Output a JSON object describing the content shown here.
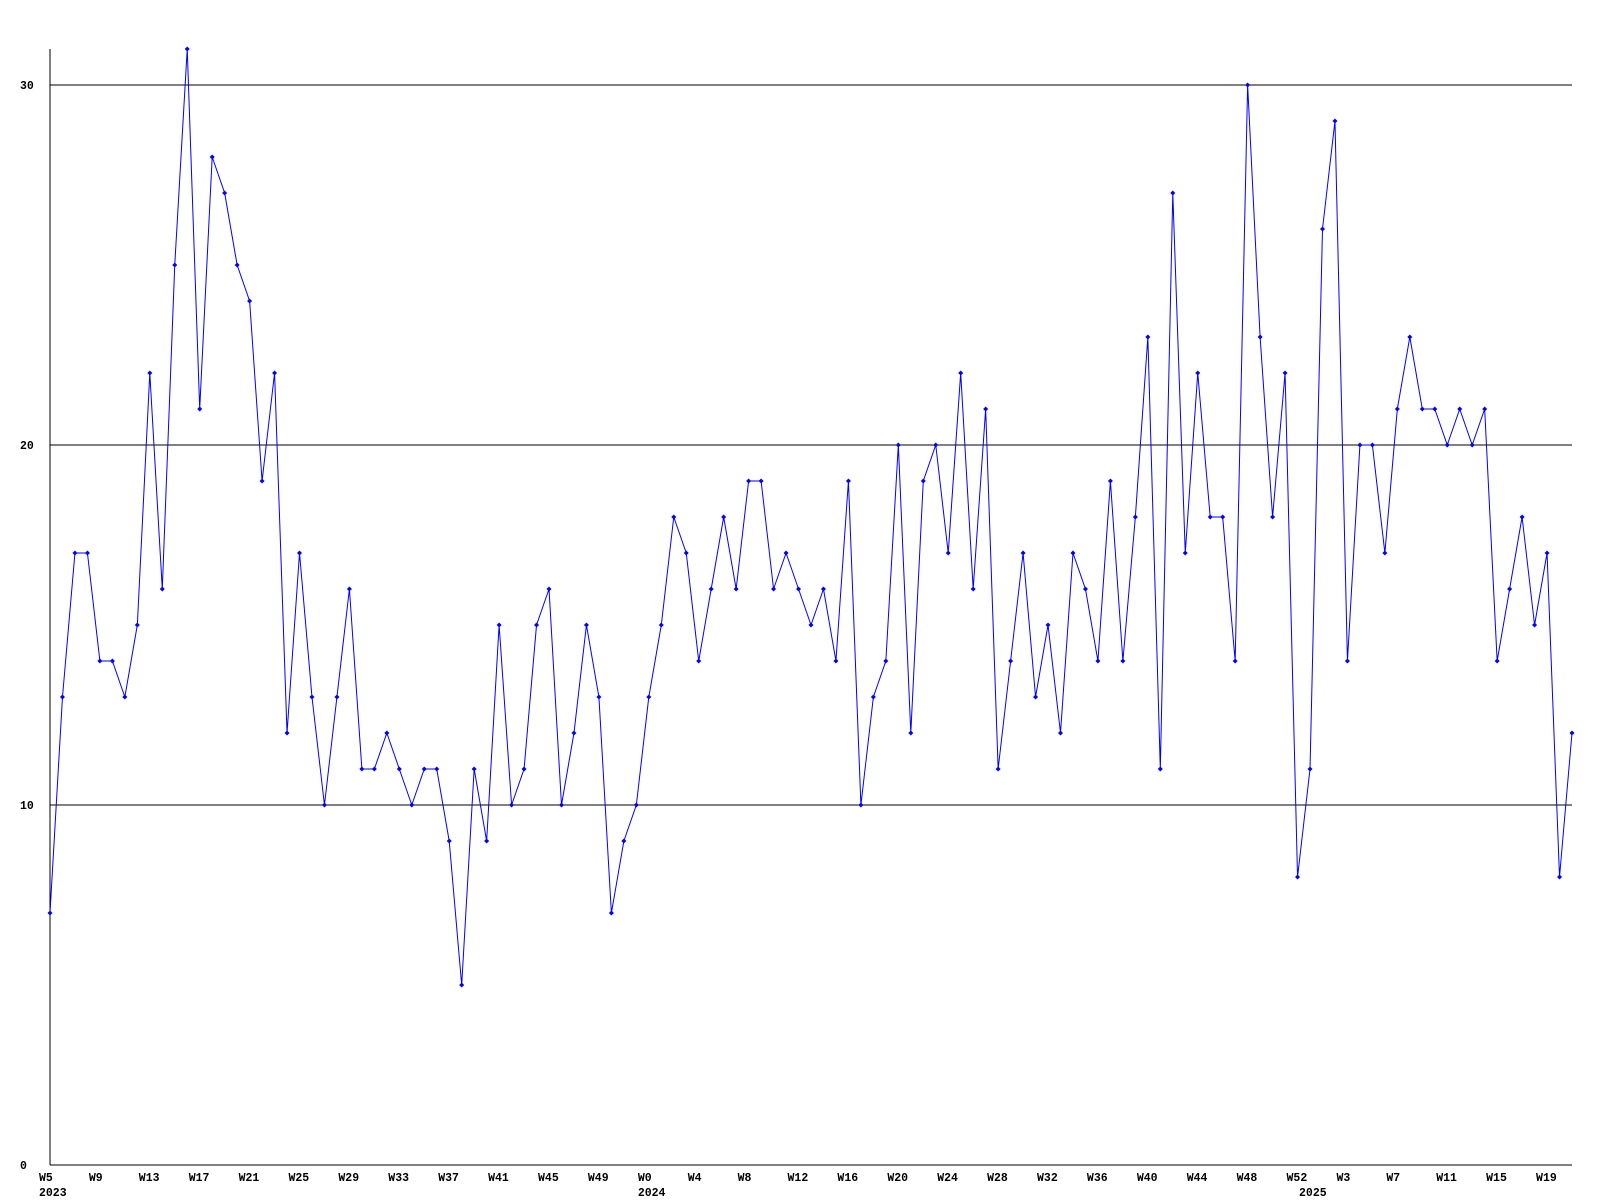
{
  "chart_data": {
    "type": "line",
    "color": "#0000ff",
    "grid": true,
    "ylim": [
      0,
      31
    ],
    "yticks": [
      0,
      10,
      20,
      30
    ],
    "categories": [
      "W5",
      null,
      null,
      null,
      "W9",
      null,
      null,
      null,
      "W13",
      null,
      null,
      null,
      "W17",
      null,
      null,
      null,
      "W21",
      null,
      null,
      null,
      "W25",
      null,
      null,
      null,
      "W29",
      null,
      null,
      null,
      "W33",
      null,
      null,
      null,
      "W37",
      null,
      null,
      null,
      "W41",
      null,
      null,
      null,
      "W45",
      null,
      null,
      null,
      "W49",
      null,
      null,
      null,
      "W0",
      null,
      null,
      null,
      "W4",
      null,
      null,
      null,
      "W8",
      null,
      null,
      null,
      "W12",
      null,
      null,
      null,
      "W16",
      null,
      null,
      null,
      "W20",
      null,
      null,
      null,
      "W24",
      null,
      null,
      null,
      "W28",
      null,
      null,
      null,
      "W32",
      null,
      null,
      null,
      "W36",
      null,
      null,
      null,
      "W40",
      null,
      null,
      null,
      "W44",
      null,
      null,
      null,
      "W48",
      null,
      null,
      null,
      "W52",
      null,
      null,
      null,
      "W3",
      null,
      null,
      null,
      "W7",
      null,
      null,
      null,
      "W11",
      null,
      null,
      null,
      "W15",
      null,
      null,
      null,
      "W19",
      null,
      null
    ],
    "category_years": [
      "2023",
      null,
      null,
      null,
      null,
      null,
      null,
      null,
      null,
      null,
      null,
      null,
      null,
      null,
      null,
      null,
      null,
      null,
      null,
      null,
      null,
      null,
      null,
      null,
      null,
      null,
      null,
      null,
      null,
      null,
      null,
      null,
      null,
      null,
      null,
      null,
      null,
      null,
      null,
      null,
      null,
      null,
      null,
      null,
      null,
      null,
      null,
      null,
      "2024",
      null,
      null,
      null,
      null,
      null,
      null,
      null,
      null,
      null,
      null,
      null,
      null,
      null,
      null,
      null,
      null,
      null,
      null,
      null,
      null,
      null,
      null,
      null,
      null,
      null,
      null,
      null,
      null,
      null,
      null,
      null,
      null,
      null,
      null,
      null,
      null,
      null,
      null,
      null,
      null,
      null,
      null,
      null,
      null,
      null,
      null,
      null,
      null,
      null,
      null,
      null,
      null,
      "2025",
      null,
      null,
      null,
      null,
      null,
      null,
      null,
      null,
      null,
      null,
      null,
      null,
      null,
      null,
      null,
      null,
      null,
      null,
      null,
      null,
      null
    ],
    "values": [
      7,
      13,
      17,
      17,
      14,
      14,
      13,
      15,
      22,
      16,
      25,
      31,
      21,
      28,
      27,
      25,
      24,
      19,
      22,
      12,
      17,
      13,
      10,
      13,
      16,
      11,
      11,
      12,
      11,
      10,
      11,
      11,
      9,
      5,
      11,
      9,
      15,
      10,
      11,
      15,
      16,
      10,
      12,
      15,
      13,
      7,
      9,
      10,
      13,
      15,
      18,
      17,
      14,
      16,
      18,
      16,
      19,
      19,
      16,
      17,
      16,
      15,
      16,
      14,
      19,
      10,
      13,
      14,
      20,
      12,
      19,
      20,
      17,
      22,
      16,
      21,
      11,
      14,
      17,
      13,
      15,
      12,
      17,
      16,
      14,
      19,
      14,
      18,
      23,
      11,
      27,
      17,
      22,
      18,
      18,
      14,
      30,
      23,
      18,
      22,
      8,
      11,
      26,
      29,
      14,
      20,
      20,
      17,
      21,
      23,
      21,
      21,
      20,
      21,
      20,
      21,
      14,
      16,
      18,
      15,
      17,
      8,
      12
    ]
  }
}
